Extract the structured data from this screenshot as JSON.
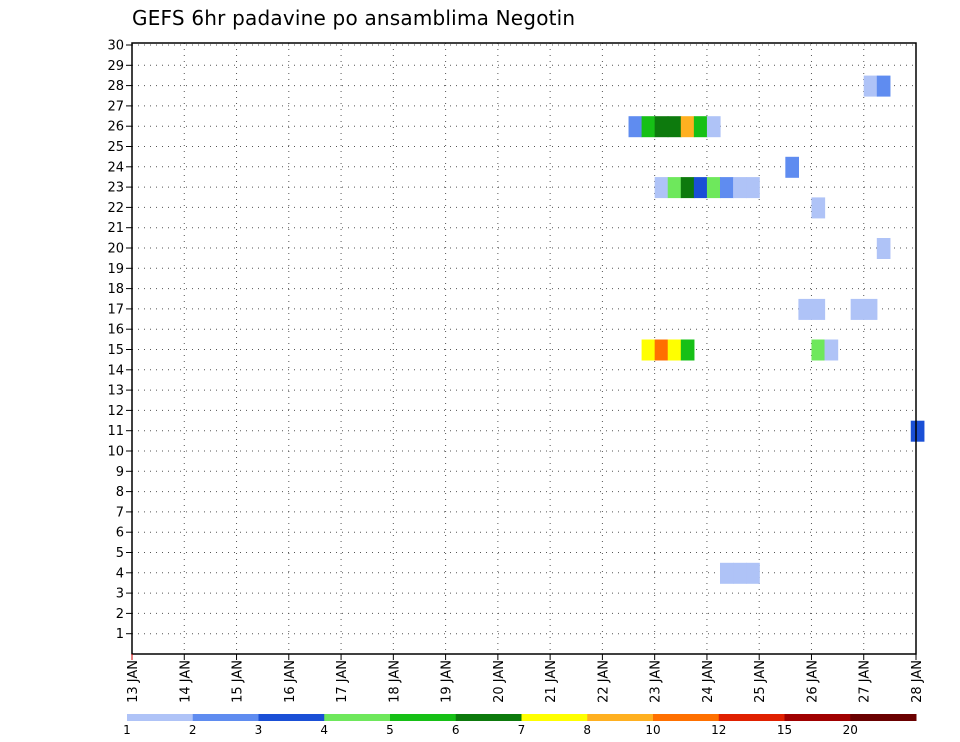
{
  "chart_data": {
    "type": "heatmap",
    "title": "GEFS 6hr padavine po ansamblima Negotin",
    "x_ticks": [
      "13 JAN",
      "14 JAN",
      "15 JAN",
      "16 JAN",
      "17 JAN",
      "18 JAN",
      "19 JAN",
      "20 JAN",
      "21 JAN",
      "22 JAN",
      "23 JAN",
      "24 JAN",
      "25 JAN",
      "26 JAN",
      "27 JAN",
      "28 JAN"
    ],
    "y_ticks": [
      "1",
      "2",
      "3",
      "4",
      "5",
      "6",
      "7",
      "8",
      "9",
      "10",
      "11",
      "12",
      "13",
      "14",
      "15",
      "16",
      "17",
      "18",
      "19",
      "20",
      "21",
      "22",
      "23",
      "24",
      "25",
      "26",
      "27",
      "28",
      "29",
      "30"
    ],
    "x_range_days": [
      13,
      28
    ],
    "y_range": [
      0,
      30
    ],
    "grid": true,
    "legend_position": "bottom",
    "legend": {
      "labels": [
        "1",
        "2",
        "3",
        "4",
        "5",
        "6",
        "7",
        "8",
        "10",
        "12",
        "15",
        "20"
      ],
      "colors": [
        "#afc3f7",
        "#5f8cf0",
        "#1a4fd6",
        "#6ee85c",
        "#16c016",
        "#0d7a0d",
        "#ffff00",
        "#ffb020",
        "#ff7000",
        "#e02000",
        "#a00000",
        "#6a0000"
      ]
    },
    "cells": [
      {
        "member": 26,
        "day": 22.5,
        "value": 2
      },
      {
        "member": 26,
        "day": 22.75,
        "value": 5
      },
      {
        "member": 26,
        "day": 23.0,
        "value": 6
      },
      {
        "member": 26,
        "day": 23.25,
        "value": 6
      },
      {
        "member": 26,
        "day": 23.5,
        "value": 8
      },
      {
        "member": 26,
        "day": 23.75,
        "value": 5
      },
      {
        "member": 26,
        "day": 24.0,
        "value": 1
      },
      {
        "member": 23,
        "day": 23.0,
        "value": 1
      },
      {
        "member": 23,
        "day": 23.25,
        "value": 4
      },
      {
        "member": 23,
        "day": 23.5,
        "value": 6
      },
      {
        "member": 23,
        "day": 23.75,
        "value": 3
      },
      {
        "member": 23,
        "day": 24.0,
        "value": 4
      },
      {
        "member": 23,
        "day": 24.25,
        "value": 2
      },
      {
        "member": 23,
        "day": 24.5,
        "value": 1
      },
      {
        "member": 23,
        "day": 24.75,
        "value": 1
      },
      {
        "member": 15,
        "day": 22.75,
        "value": 7
      },
      {
        "member": 15,
        "day": 23.0,
        "value": 10
      },
      {
        "member": 15,
        "day": 23.25,
        "value": 7
      },
      {
        "member": 15,
        "day": 23.5,
        "value": 5
      },
      {
        "member": 15,
        "day": 26.0,
        "value": 4
      },
      {
        "member": 15,
        "day": 26.25,
        "value": 1
      },
      {
        "member": 28,
        "day": 27.0,
        "value": 1
      },
      {
        "member": 28,
        "day": 27.25,
        "value": 2
      },
      {
        "member": 24,
        "day": 25.5,
        "value": 2
      },
      {
        "member": 22,
        "day": 26.0,
        "value": 1
      },
      {
        "member": 20,
        "day": 27.25,
        "value": 1
      },
      {
        "member": 17,
        "day": 25.75,
        "value": 1
      },
      {
        "member": 17,
        "day": 26.0,
        "value": 1
      },
      {
        "member": 17,
        "day": 26.75,
        "value": 1
      },
      {
        "member": 17,
        "day": 27.0,
        "value": 1
      },
      {
        "member": 11,
        "day": 27.9,
        "value": 3
      },
      {
        "member": 4,
        "day": 24.25,
        "value": 1
      },
      {
        "member": 4,
        "day": 24.5,
        "value": 1
      },
      {
        "member": 4,
        "day": 24.75,
        "value": 1
      }
    ]
  }
}
